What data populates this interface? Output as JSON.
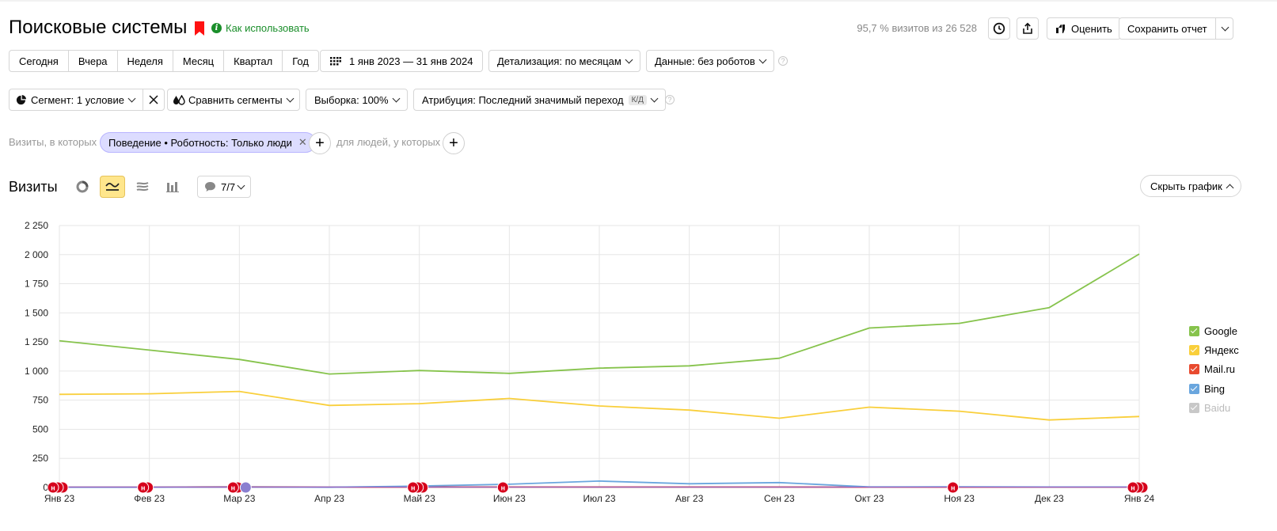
{
  "header": {
    "title": "Поисковые системы",
    "howto": "Как использовать",
    "share_stat": "95,7 % визитов из 26 528",
    "rate_label": "Оценить",
    "save_label": "Сохранить отчет"
  },
  "periods": [
    "Сегодня",
    "Вчера",
    "Неделя",
    "Месяц",
    "Квартал",
    "Год"
  ],
  "date_range": "1 янв 2023 — 31 янв 2024",
  "detail_label": "Детализация: по месяцам",
  "data_label": "Данные: без роботов",
  "segment_label": "Сегмент: 1 условие",
  "compare_label": "Сравнить сегменты",
  "sample_label": "Выборка: 100%",
  "attribution": {
    "label": "Атрибуция: Последний значимый переход",
    "badge": "К/Д"
  },
  "filter": {
    "prefix": "Визиты, в которых",
    "chip": "Поведение • Роботность: Только люди",
    "suffix": "для людей, у которых"
  },
  "chart_controls": {
    "title": "Визиты",
    "annotations_count": "7/7",
    "hide_label": "Скрыть график"
  },
  "colors": {
    "google": "#86c34c",
    "yandex": "#f9cf3b",
    "mailru": "#e84a2f",
    "bing": "#6aa6de",
    "baidu": "#c8c8c8",
    "annotation": "#d6001c"
  },
  "chart_data": {
    "type": "line",
    "x": [
      "Янв 23",
      "Фев 23",
      "Мар 23",
      "Апр 23",
      "Май 23",
      "Июн 23",
      "Июл 23",
      "Авг 23",
      "Сен 23",
      "Окт 23",
      "Ноя 23",
      "Дек 23",
      "Янв 24"
    ],
    "ylim": [
      0,
      2250
    ],
    "yticks": [
      "0",
      "250",
      "500",
      "750",
      "1 000",
      "1 250",
      "1 500",
      "1 750",
      "2 000",
      "2 250"
    ],
    "series": [
      {
        "name": "Google",
        "color": "#86c34c",
        "values": [
          1260,
          1180,
          1100,
          975,
          1005,
          980,
          1025,
          1045,
          1110,
          1370,
          1410,
          1545,
          2005
        ]
      },
      {
        "name": "Яндекс",
        "color": "#f9cf3b",
        "values": [
          800,
          805,
          825,
          705,
          720,
          765,
          700,
          665,
          595,
          690,
          655,
          580,
          610
        ]
      },
      {
        "name": "Mail.ru",
        "color": "#e84a2f",
        "values": [
          3,
          3,
          6,
          3,
          4,
          4,
          4,
          4,
          4,
          3,
          3,
          3,
          3
        ]
      },
      {
        "name": "Bing",
        "color": "#6aa6de",
        "values": [
          2,
          2,
          4,
          2,
          12,
          28,
          55,
          32,
          42,
          5,
          6,
          4,
          4
        ]
      },
      {
        "name": "Baidu",
        "color": "#c8c8c8",
        "values": [
          0,
          0,
          0,
          0,
          0,
          0,
          0,
          0,
          0,
          0,
          0,
          0,
          0
        ],
        "disabled": true
      }
    ],
    "annotations": [
      {
        "x_index": 0,
        "count": 3,
        "label": "н"
      },
      {
        "x_index": 1,
        "count": 2,
        "label": "н"
      },
      {
        "x_index": 2,
        "count": 2,
        "label": "н",
        "extra": "purple"
      },
      {
        "x_index": 4,
        "count": 3,
        "label": "н"
      },
      {
        "x_index": 5,
        "count": 1,
        "label": "н"
      },
      {
        "x_index": 10,
        "count": 1,
        "label": "н"
      },
      {
        "x_index": 12,
        "count": 3,
        "label": "н"
      }
    ]
  }
}
